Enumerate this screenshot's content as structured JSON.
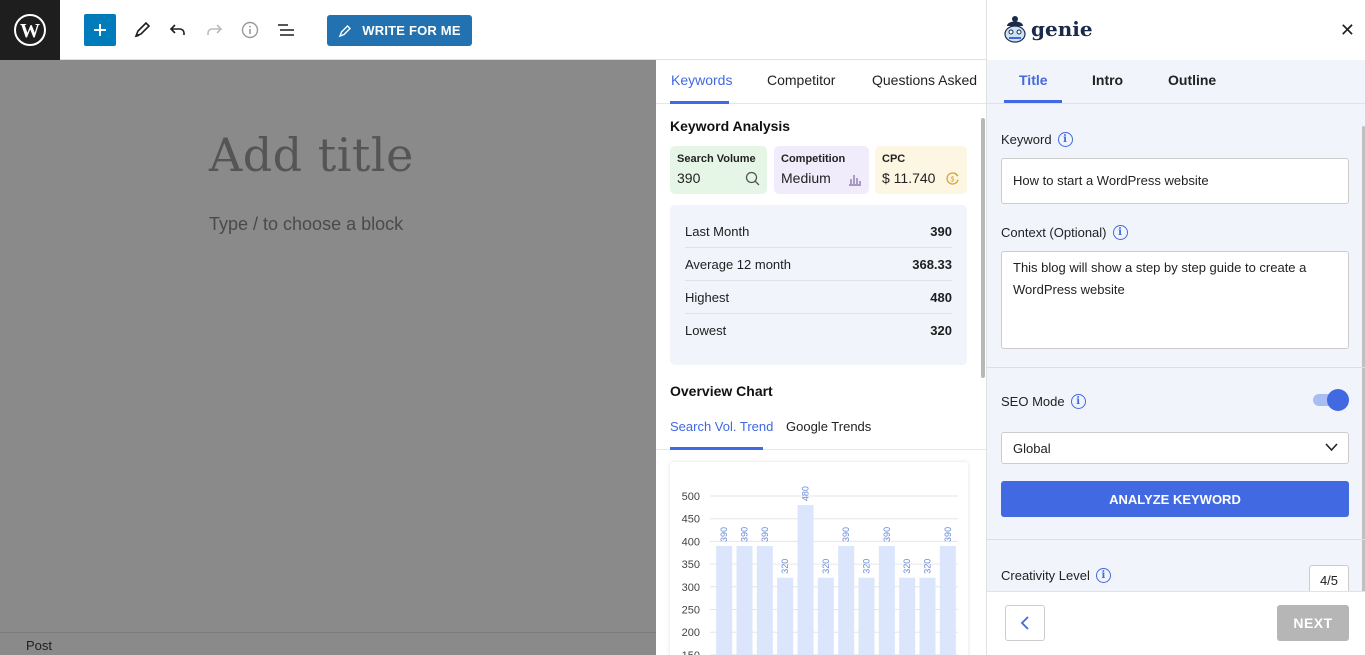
{
  "toolbar": {
    "write_for_me": "WRITE FOR ME"
  },
  "editor": {
    "title_placeholder": "Add title",
    "block_hint": "Type / to choose a block",
    "footer_label": "Post"
  },
  "keywords_panel": {
    "tabs": [
      "Keywords",
      "Competitor",
      "Questions Asked"
    ],
    "active_tab": "Keywords",
    "analysis_title": "Keyword Analysis",
    "cards": [
      {
        "label": "Search Volume",
        "value": "390",
        "icon": "search-icon",
        "bg": "#e6f6e6"
      },
      {
        "label": "Competition",
        "value": "Medium",
        "icon": "bar-chart-icon",
        "bg": "#f1ecfb"
      },
      {
        "label": "CPC",
        "value": "$ 11.740",
        "icon": "dollar-refresh-icon",
        "bg": "#fdf6e2"
      }
    ],
    "stats": [
      {
        "label": "Last Month",
        "value": "390"
      },
      {
        "label": "Average 12 month",
        "value": "368.33"
      },
      {
        "label": "Highest",
        "value": "480"
      },
      {
        "label": "Lowest",
        "value": "320"
      }
    ],
    "overview_title": "Overview Chart",
    "chart_tabs": [
      "Search Vol. Trend",
      "Google Trends"
    ]
  },
  "chart_data": {
    "type": "bar",
    "values": [
      390,
      390,
      390,
      320,
      480,
      320,
      390,
      320,
      390,
      320,
      320,
      390
    ],
    "data_labels": [
      "390",
      "390",
      "390",
      "320",
      "480",
      "320",
      "390",
      "320",
      "390",
      "320",
      "320",
      "390"
    ],
    "y_ticks": [
      "500",
      "450",
      "400",
      "350",
      "300",
      "250",
      "200",
      "150"
    ],
    "ylim": [
      150,
      500
    ],
    "grid": true,
    "bar_color": "#dbe5fb",
    "label_color": "#6a8ad8"
  },
  "genie": {
    "brand": "genie",
    "tabs": [
      "Title",
      "Intro",
      "Outline"
    ],
    "active_tab": "Title",
    "keyword_label": "Keyword",
    "keyword_value": "How to start a WordPress website",
    "context_label": "Context (Optional)",
    "context_value": "This blog will show a step by step guide to create a WordPress website",
    "seo_label": "SEO Mode",
    "seo_enabled": true,
    "region_value": "Global",
    "analyze_label": "ANALYZE KEYWORD",
    "creativity_label": "Creativity Level",
    "creativity_value": "4/5",
    "next_label": "NEXT"
  },
  "colors": {
    "accent": "#4169e1",
    "wp_blue": "#007cba",
    "panel_bg": "#f1f4fb",
    "overlay": "#8a8a8a"
  }
}
